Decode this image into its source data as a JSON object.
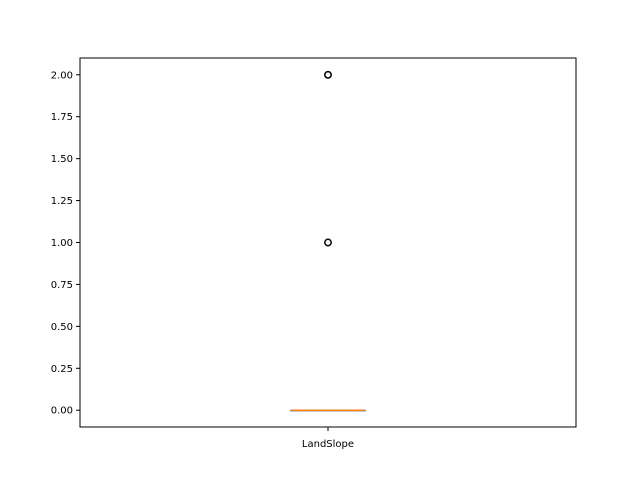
{
  "chart_data": {
    "type": "box",
    "categories": [
      "LandSlope"
    ],
    "ylim": [
      -0.1,
      2.1
    ],
    "yticks": [
      {
        "value": 0.0,
        "label": "0.00"
      },
      {
        "value": 0.25,
        "label": "0.25"
      },
      {
        "value": 0.5,
        "label": "0.50"
      },
      {
        "value": 0.75,
        "label": "0.75"
      },
      {
        "value": 1.0,
        "label": "1.00"
      },
      {
        "value": 1.25,
        "label": "1.25"
      },
      {
        "value": 1.5,
        "label": "1.50"
      },
      {
        "value": 1.75,
        "label": "1.75"
      },
      {
        "value": 2.0,
        "label": "2.00"
      }
    ],
    "boxes": [
      {
        "category": "LandSlope",
        "whisker_low": 0,
        "q1": 0,
        "median": 0,
        "q3": 0,
        "whisker_high": 0,
        "outliers": [
          1,
          2
        ]
      }
    ],
    "colors": {
      "box": "#000000",
      "median": "#ff7f0e",
      "outlier": "#000000"
    },
    "grid": false,
    "title": "",
    "xlabel": "",
    "ylabel": ""
  }
}
